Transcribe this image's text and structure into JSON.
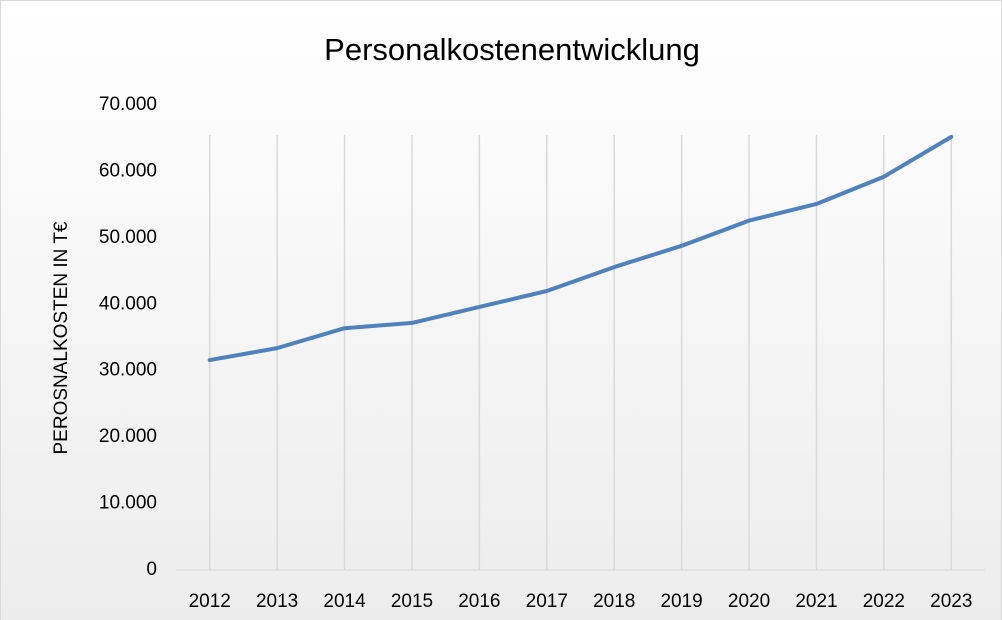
{
  "chart_data": {
    "type": "line",
    "title": "Personalkostenentwicklung",
    "y_label": "PEROSNALKOSTEN IN T€",
    "categories": [
      "2012",
      "2013",
      "2014",
      "2015",
      "2016",
      "2017",
      "2018",
      "2019",
      "2020",
      "2021",
      "2022",
      "2023"
    ],
    "values": [
      31600,
      33400,
      36400,
      37200,
      39600,
      42000,
      45600,
      48800,
      52600,
      55100,
      59200,
      65200
    ],
    "color": "#4f81bd",
    "ylim": [
      0,
      70000
    ],
    "yticks": [
      0,
      {
        "value": 10000,
        "label": "10.000"
      },
      {
        "value": 20000,
        "label": "20.000"
      },
      {
        "value": 30000,
        "label": "30.000"
      },
      {
        "value": 40000,
        "label": "40.000"
      },
      {
        "value": 50000,
        "label": "50.000"
      },
      {
        "value": 60000,
        "label": "60.000"
      },
      {
        "value": 70000,
        "label": "70.000"
      }
    ],
    "grid": true
  }
}
